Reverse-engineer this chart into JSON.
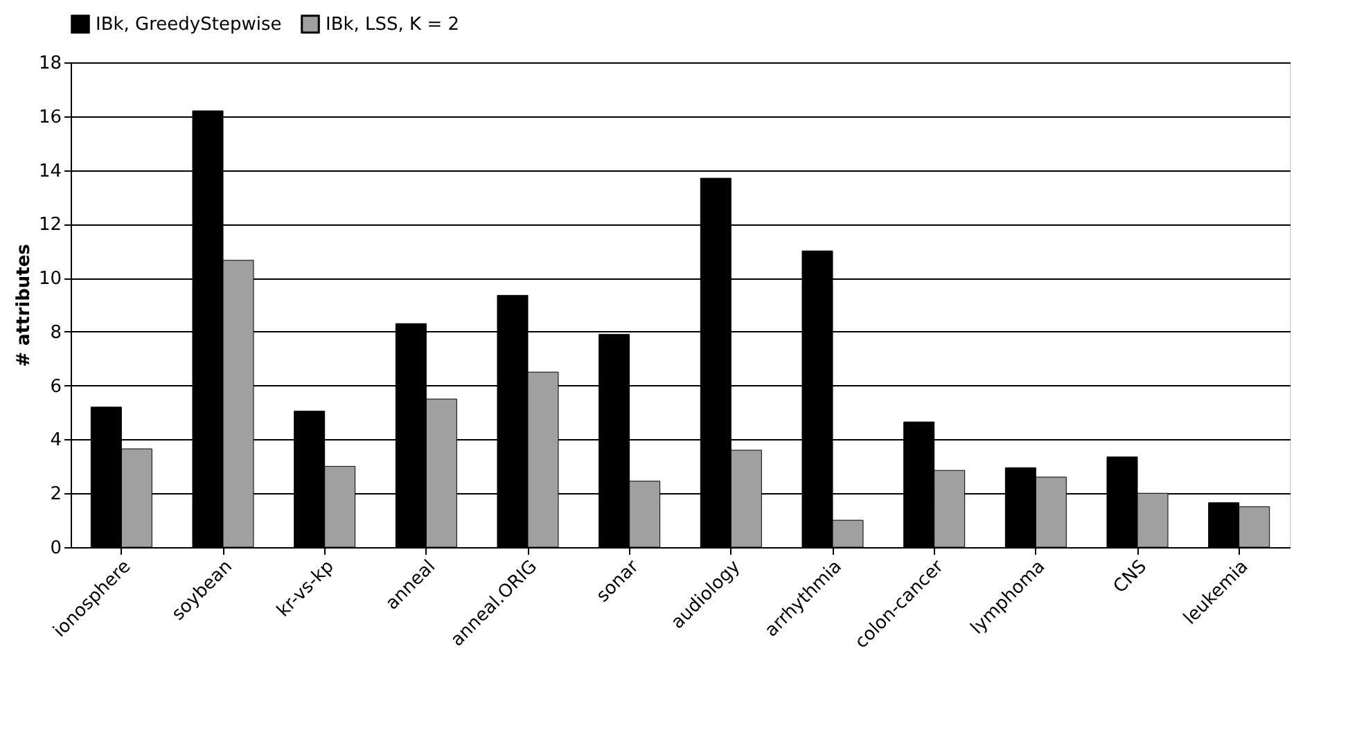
{
  "chart_data": {
    "type": "bar",
    "ylabel": "# attributes",
    "categories": [
      "ionosphere",
      "soybean",
      "kr-vs-kp",
      "anneal",
      "anneal.ORIG",
      "sonar",
      "audiology",
      "arrhythmia",
      "colon-cancer",
      "lymphoma",
      "CNS",
      "leukemia"
    ],
    "series": [
      {
        "name": "IBk, GreedyStepwise",
        "color": "#000000",
        "values": [
          5.2,
          16.2,
          5.05,
          8.3,
          9.35,
          7.9,
          13.7,
          11.0,
          4.65,
          2.95,
          3.35,
          1.65
        ]
      },
      {
        "name": "IBk, LSS, K = 2",
        "color": "#a0a0a0",
        "values": [
          3.65,
          10.65,
          3.0,
          5.5,
          6.5,
          2.45,
          3.6,
          1.0,
          2.85,
          2.6,
          2.0,
          1.5
        ]
      }
    ],
    "ylim": [
      0,
      18
    ],
    "yticks": [
      0,
      2,
      4,
      6,
      8,
      10,
      12,
      14,
      16,
      18
    ],
    "grid": "y",
    "legend": "top"
  }
}
